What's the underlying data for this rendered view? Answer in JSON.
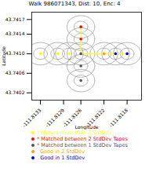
{
  "chart_data": {
    "type": "scatter",
    "title": "Walk 986071343, Dist: 10, Enc: 4",
    "xlabel": "Longitude",
    "ylabel": "Latitude",
    "xlim": [
      -111.81345,
      -111.81155
    ],
    "ylim": [
      43.74005,
      43.74185
    ],
    "xticks": [
      -111.8133,
      -111.8129,
      -111.8126,
      -111.8122,
      -111.8118
    ],
    "yticks": [
      43.7402,
      43.7406,
      {
        "value": 43.741,
        "label": "43.7410"
      },
      43.7414,
      43.7417
    ],
    "grid": false,
    "legend": "bottom",
    "ellipses": {
      "color": "gray",
      "centers": [
        [
          -111.8133,
          43.741
        ],
        [
          -111.813,
          43.741
        ],
        [
          -111.8128,
          43.741
        ],
        [
          -111.8126,
          43.74155
        ],
        [
          -111.8126,
          43.7413
        ],
        [
          -111.8126,
          43.741
        ],
        [
          -111.8126,
          43.74075
        ],
        [
          -111.8126,
          43.74045
        ],
        [
          -111.8122,
          43.741
        ],
        [
          -111.812,
          43.741
        ],
        [
          -111.8118,
          43.741
        ]
      ],
      "radii": [
        [
          0.00012,
          0.000115
        ],
        [
          0.00024,
          0.00023
        ]
      ]
    },
    "series": [
      {
        "type": "line",
        "color": "yellow",
        "x": [
          -111.8126,
          -111.8126,
          -111.8126,
          -111.8122,
          -111.812,
          -111.8118
        ],
        "values": [
          43.74155,
          43.7413,
          43.741,
          43.741,
          43.741,
          43.741
        ]
      },
      {
        "type": "scatter",
        "name": "* Missed more than 2 StdDev",
        "color": "yellow",
        "x": [
          -111.8133,
          -111.813,
          -111.8128
        ],
        "values": [
          43.741,
          43.741,
          43.741
        ]
      },
      {
        "type": "scatter",
        "name": "* Matched between 2 StdDev Tapes",
        "color": "red",
        "x": [
          -111.8126,
          -111.8126
        ],
        "values": [
          43.74155,
          43.7413
        ]
      },
      {
        "type": "scatter",
        "name": "* Matched between 1 StdDev Tapes",
        "color": "#555555",
        "x": [
          -111.8126,
          -111.8126,
          -111.8126
        ],
        "values": [
          43.741,
          43.74075,
          43.74045
        ]
      },
      {
        "type": "scatter",
        "name": "  Good in 2 StdDev",
        "color": "orange",
        "x": [
          -111.8122
        ],
        "values": [
          43.741
        ]
      },
      {
        "type": "scatter",
        "name": "  Good in 1 StdDev",
        "color": "blue",
        "x": [
          -111.812,
          -111.8118
        ],
        "values": [
          43.741,
          43.741
        ]
      }
    ]
  }
}
